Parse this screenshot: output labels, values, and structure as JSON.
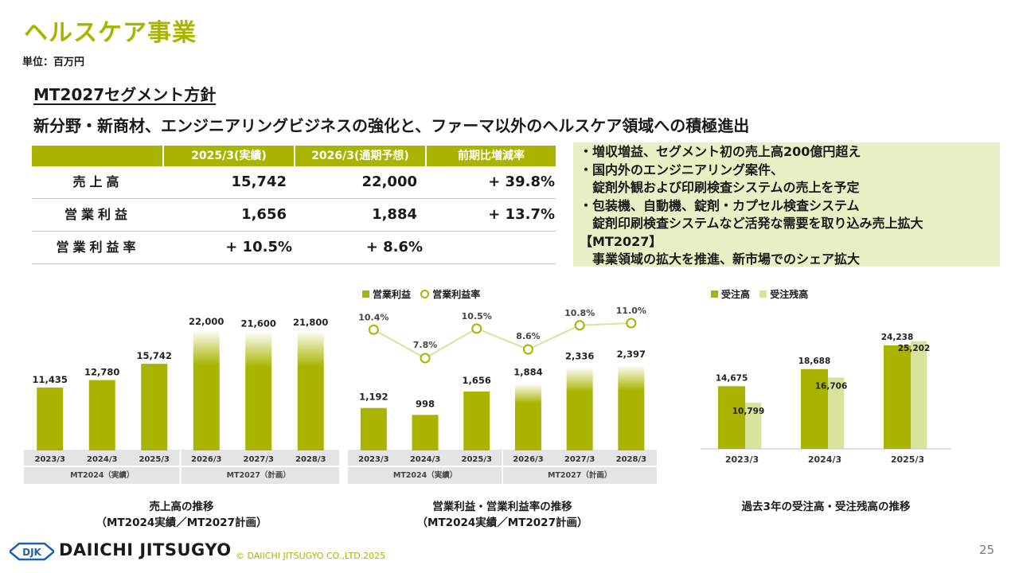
{
  "page": {
    "title": "ヘルスケア事業",
    "unit": "単位：百万円",
    "policy_title": "MT2027セグメント方針",
    "policy_headline": "新分野・新商材、エンジニアリングビジネスの強化と、ファーマ以外のヘルスケア領域への積極進出",
    "page_number": "25"
  },
  "summary_table": {
    "headers": [
      "2025/3(実績)",
      "2026/3(通期予想)",
      "前期比増減率"
    ],
    "rows": [
      {
        "label": "売上高",
        "values": [
          "15,742",
          "22,000",
          "+ 39.8%"
        ]
      },
      {
        "label": "営業利益",
        "values": [
          "1,656",
          "1,884",
          "+ 13.7%"
        ]
      },
      {
        "label": "営業利益率",
        "values": [
          "+ 10.5%",
          "+ 8.6%",
          ""
        ]
      }
    ]
  },
  "notes": [
    "・増収増益、セグメント初の売上高200億円超え",
    "・国内外のエンジニアリング案件、",
    "　錠剤外観および印刷検査システムの売上を予定",
    "・包装機、自動機、錠剤・カプセル検査システム",
    "　錠剤印刷検査システムなど活発な需要を取り込み売上拡大",
    "【MT2027】",
    "　事業領域の拡大を推進、新市場でのシェア拡大"
  ],
  "colors": {
    "accent": "#a8b400",
    "light": "#d9e29a",
    "note_bg": "#e9efc5",
    "axis_band": "#e4e4e4"
  },
  "chart_data": [
    {
      "type": "bar",
      "categories": [
        "2023/3",
        "2024/3",
        "2025/3",
        "2026/3",
        "2027/3",
        "2028/3"
      ],
      "values": [
        11435,
        12780,
        15742,
        22000,
        21600,
        21800
      ],
      "data_labels": [
        "11,435",
        "12,780",
        "15,742",
        "22,000",
        "21,600",
        "21,800"
      ],
      "plan_from_index": 3,
      "groups": [
        {
          "label": "MT2024（実績）",
          "from": 0,
          "to": 2
        },
        {
          "label": "MT2027（計画）",
          "from": 3,
          "to": 5
        }
      ],
      "ylim": [
        0,
        24000
      ],
      "caption": [
        "売上高の推移",
        "（MT2024実績／MT2027計画）"
      ]
    },
    {
      "type": "bar+line",
      "categories": [
        "2023/3",
        "2024/3",
        "2025/3",
        "2026/3",
        "2027/3",
        "2028/3"
      ],
      "series": [
        {
          "name": "営業利益",
          "type": "bar",
          "values": [
            1192,
            998,
            1656,
            1884,
            2336,
            2397
          ],
          "labels": [
            "1,192",
            "998",
            "1,656",
            "1,884",
            "2,336",
            "2,397"
          ]
        },
        {
          "name": "営業利益率",
          "type": "line",
          "values": [
            10.4,
            7.8,
            10.5,
            8.6,
            10.8,
            11.0
          ],
          "labels": [
            "10.4%",
            "7.8%",
            "10.5%",
            "8.6%",
            "10.8%",
            "11.0%"
          ]
        }
      ],
      "plan_from_index": 3,
      "groups": [
        {
          "label": "MT2024（実績）",
          "from": 0,
          "to": 2
        },
        {
          "label": "MT2027（計画）",
          "from": 3,
          "to": 5
        }
      ],
      "ylim": [
        0,
        3800
      ],
      "y2lim": [
        0,
        16
      ],
      "caption": [
        "営業利益・営業利益率の推移",
        "（MT2024実績／MT2027計画）"
      ]
    },
    {
      "type": "bar",
      "categories": [
        "2023/3",
        "2024/3",
        "2025/3"
      ],
      "series": [
        {
          "name": "受注高",
          "values": [
            14675,
            18688,
            24238
          ],
          "labels": [
            "14,675",
            "18,688",
            "24,238"
          ]
        },
        {
          "name": "受注残高",
          "values": [
            10799,
            16706,
            25202
          ],
          "labels": [
            "10,799",
            "16,706",
            "25,202"
          ]
        }
      ],
      "ylim": [
        0,
        27000
      ],
      "caption": [
        "過去3年の受注高・受注残高の推移"
      ]
    }
  ],
  "footer": {
    "logo_text": "DJK",
    "company": "DAIICHI JITSUGYO",
    "copyright": "© DAIICHI JITSUGYO CO.,LTD.2025"
  }
}
